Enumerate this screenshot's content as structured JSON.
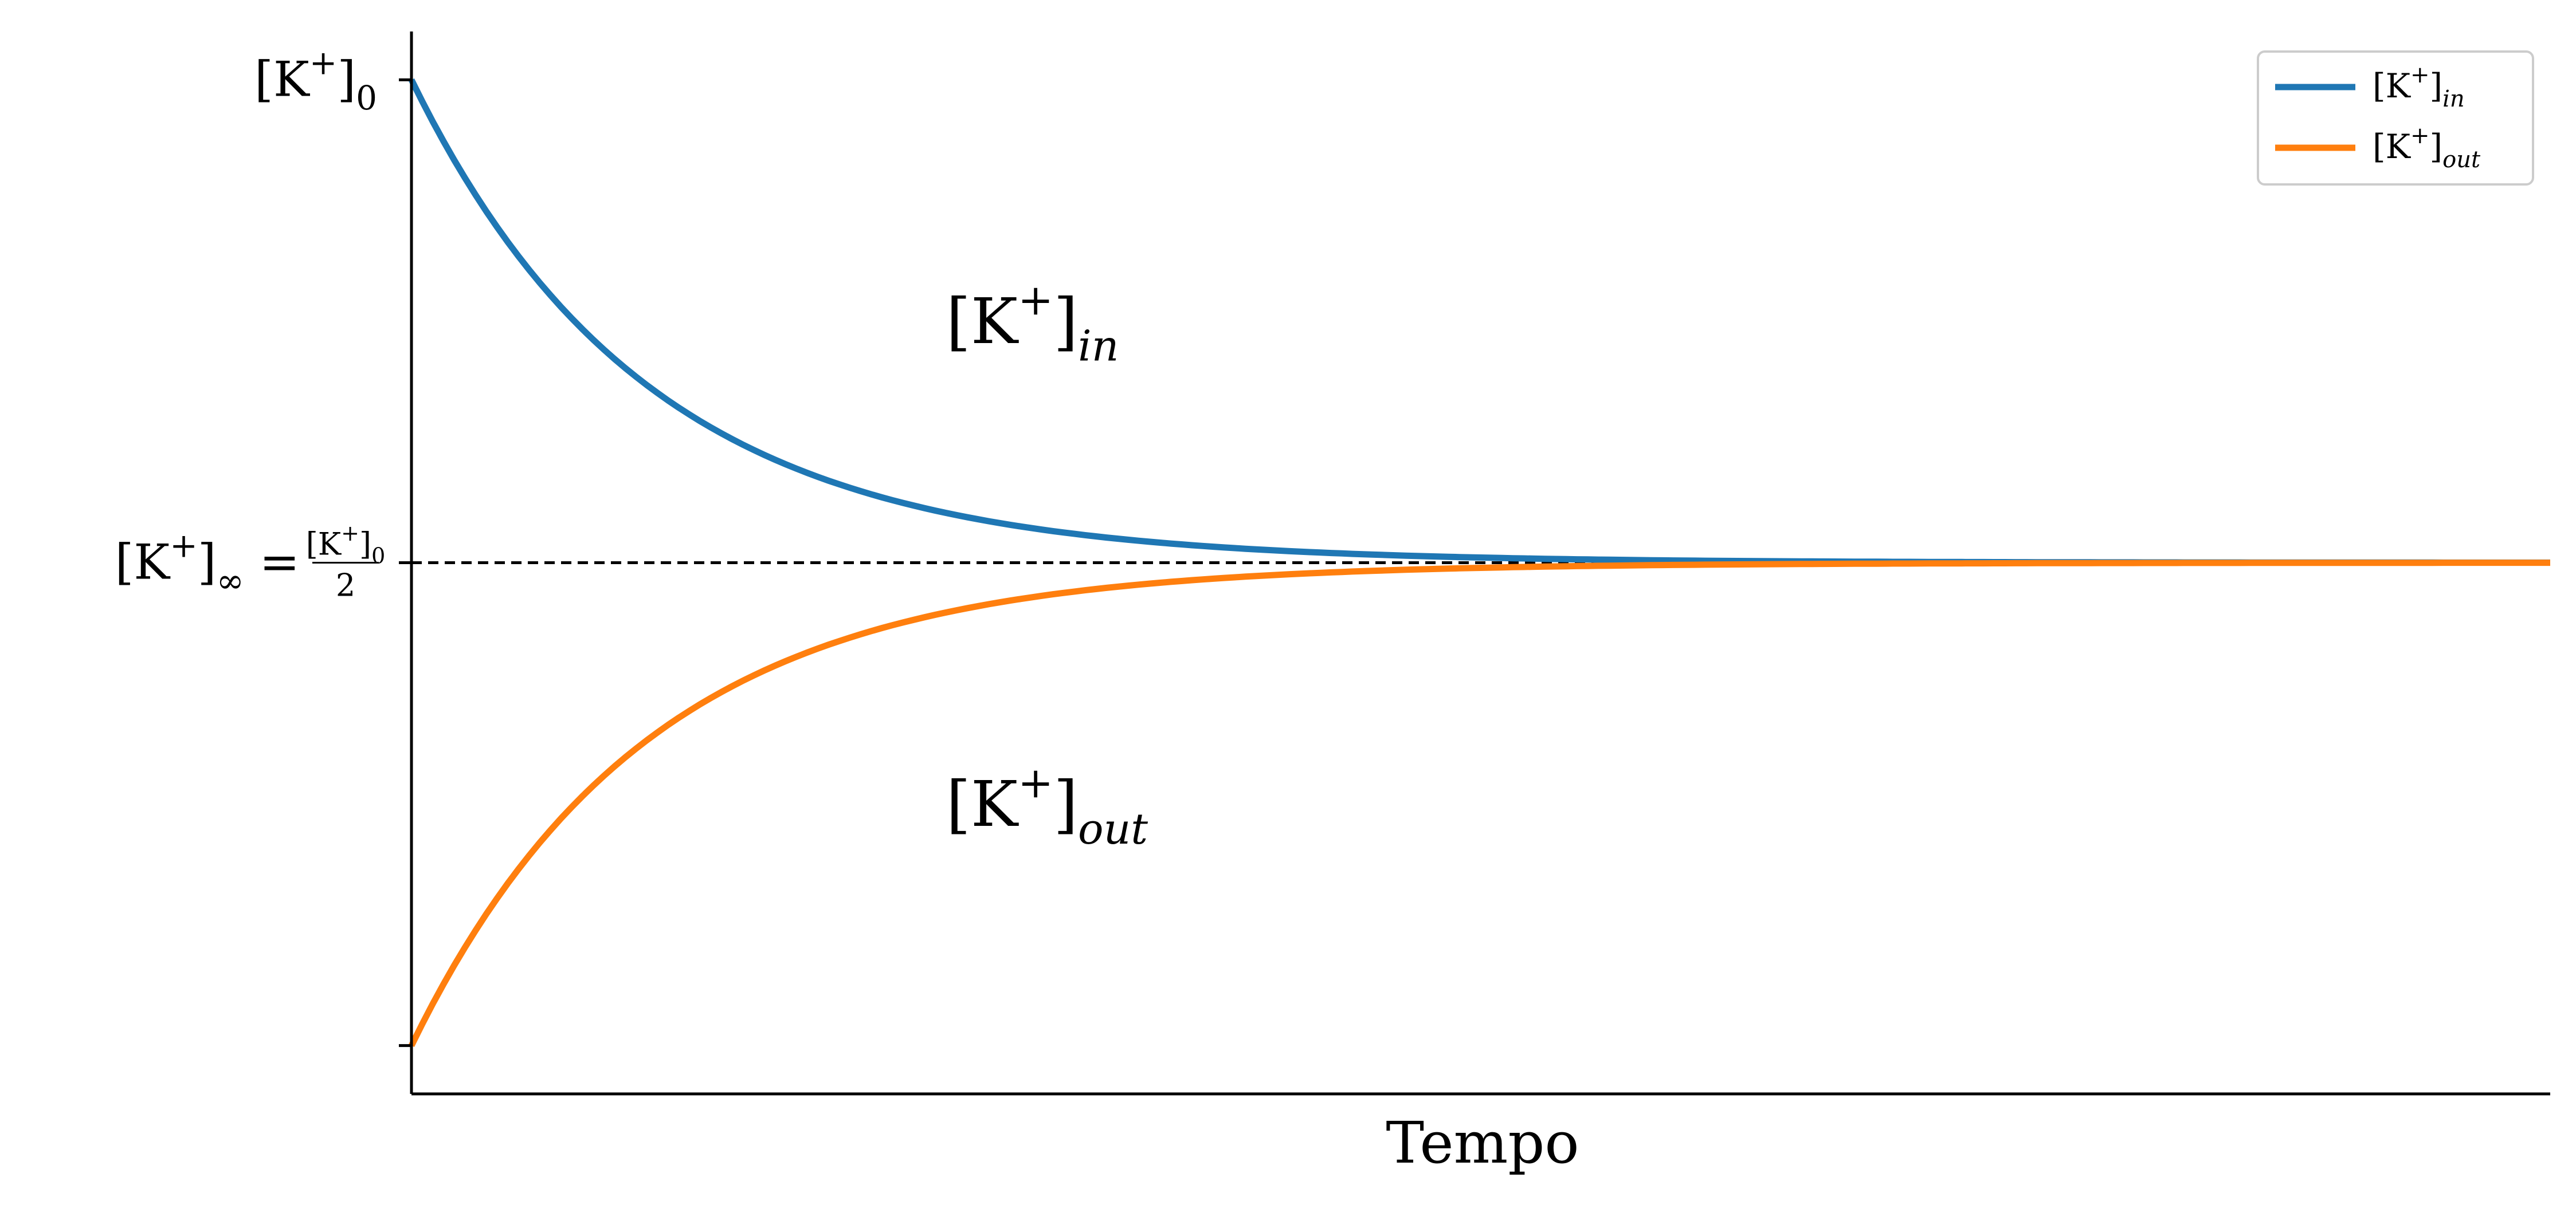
{
  "chart_data": {
    "type": "line",
    "title": "",
    "xlabel": "Tempo",
    "ylabel": "",
    "xlim": [
      0,
      10
    ],
    "ylim": [
      -0.1,
      2.1
    ],
    "grid": false,
    "legend_position": "top-right",
    "y_ticks": [
      {
        "value": 2.0,
        "label": "[K+]0",
        "base": "[K",
        "sup": "+",
        "close": "]",
        "sub": "0"
      },
      {
        "value": 1.0,
        "label": "[K+]∞ = [K+]0 / 2",
        "base": "[K",
        "sup": "+",
        "close": "]",
        "sub": "∞",
        "eq": " = ",
        "num": "[K+]0",
        "den": "2"
      },
      {
        "value": 0.0,
        "label": ""
      }
    ],
    "reference_line": {
      "y": 1.0,
      "style": "dashed",
      "color": "#000000"
    },
    "series": [
      {
        "name": "[K+]in",
        "legend_base": "[K",
        "legend_sup": "+",
        "legend_close": "]",
        "legend_sub": "in",
        "color": "#1f77b4",
        "x": [
          0,
          0.5,
          1,
          1.5,
          2,
          2.5,
          3,
          3.5,
          4,
          4.5,
          5,
          5.5,
          6,
          6.5,
          7,
          7.5,
          8,
          8.5,
          9,
          9.5,
          10
        ],
        "values": [
          2.0,
          1.674,
          1.454,
          1.305,
          1.205,
          1.138,
          1.092,
          1.062,
          1.042,
          1.028,
          1.019,
          1.013,
          1.009,
          1.006,
          1.004,
          1.003,
          1.002,
          1.001,
          1.001,
          1.0,
          1.0
        ]
      },
      {
        "name": "[K+]out",
        "legend_base": "[K",
        "legend_sup": "+",
        "legend_close": "]",
        "legend_sub": "out",
        "color": "#ff7f0e",
        "x": [
          0,
          0.5,
          1,
          1.5,
          2,
          2.5,
          3,
          3.5,
          4,
          4.5,
          5,
          5.5,
          6,
          6.5,
          7,
          7.5,
          8,
          8.5,
          9,
          9.5,
          10
        ],
        "values": [
          0.0,
          0.326,
          0.546,
          0.695,
          0.795,
          0.862,
          0.908,
          0.938,
          0.958,
          0.972,
          0.981,
          0.987,
          0.991,
          0.994,
          0.996,
          0.997,
          0.998,
          0.999,
          0.999,
          1.0,
          1.0
        ]
      }
    ],
    "annotations": [
      {
        "text": "[K+]in",
        "base": "[K",
        "sup": "+",
        "close": "]",
        "sub": "in",
        "x": 2.5,
        "y": 1.5
      },
      {
        "text": "[K+]out",
        "base": "[K",
        "sup": "+",
        "close": "]",
        "sub": "out",
        "x": 2.5,
        "y": 0.5
      }
    ]
  }
}
